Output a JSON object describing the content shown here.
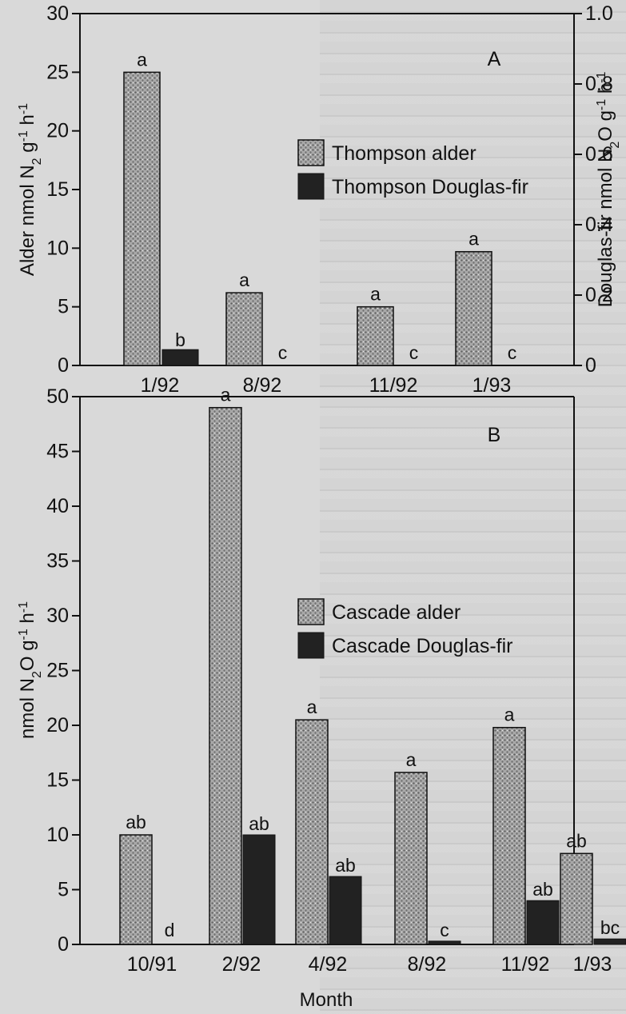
{
  "chart_data": [
    {
      "type": "bar",
      "panel": "A",
      "categories": [
        "1/92",
        "8/92",
        "11/92",
        "1/93"
      ],
      "series": [
        {
          "name": "Thompson alder",
          "axis": "left",
          "values": [
            25,
            6.2,
            5,
            9.7
          ],
          "labels": [
            "a",
            "a",
            "a",
            "a"
          ],
          "color": "#9a9a9a",
          "pattern": "stipple"
        },
        {
          "name": "Thompson Douglas-fir",
          "axis": "right",
          "values": [
            0.045,
            0.003,
            0.003,
            0.003
          ],
          "labels": [
            "b",
            "c",
            "c",
            "c"
          ],
          "color": "#222222",
          "pattern": "solid"
        }
      ],
      "ylabel": "Alder nmol N₂ g⁻¹ h⁻¹",
      "ylim": [
        0,
        30
      ],
      "yticks": [
        "0",
        "5",
        "10",
        "15",
        "20",
        "25",
        "30"
      ],
      "y2label": "Douglas-fir nmol N₂O g⁻¹ h⁻¹",
      "y2lim": [
        0,
        1.0
      ],
      "y2ticks": [
        "0",
        "0.2",
        "0.4",
        "0.6",
        "0.8",
        "1.0"
      ],
      "legend_position": "top-right"
    },
    {
      "type": "bar",
      "panel": "B",
      "categories": [
        "10/91",
        "2/92",
        "4/92",
        "8/92",
        "11/92",
        "1/93"
      ],
      "series": [
        {
          "name": "Cascade alder",
          "values": [
            10,
            49,
            20.5,
            15.7,
            19.8,
            8.3
          ],
          "labels": [
            "ab",
            "a",
            "a",
            "a",
            "a",
            "ab"
          ],
          "color": "#9a9a9a",
          "pattern": "stipple"
        },
        {
          "name": "Cascade Douglas-fir",
          "values": [
            0,
            10,
            6.2,
            0.3,
            4,
            0.5
          ],
          "labels": [
            "d",
            "ab",
            "ab",
            "c",
            "ab",
            "bc"
          ],
          "color": "#222222",
          "pattern": "solid"
        }
      ],
      "ylabel": "nmol N₂O g⁻¹ h⁻¹",
      "xlabel": "Month",
      "ylim": [
        0,
        50
      ],
      "yticks": [
        "0",
        "5",
        "10",
        "15",
        "20",
        "25",
        "30",
        "35",
        "40",
        "45",
        "50"
      ],
      "legend_position": "middle-right"
    }
  ]
}
